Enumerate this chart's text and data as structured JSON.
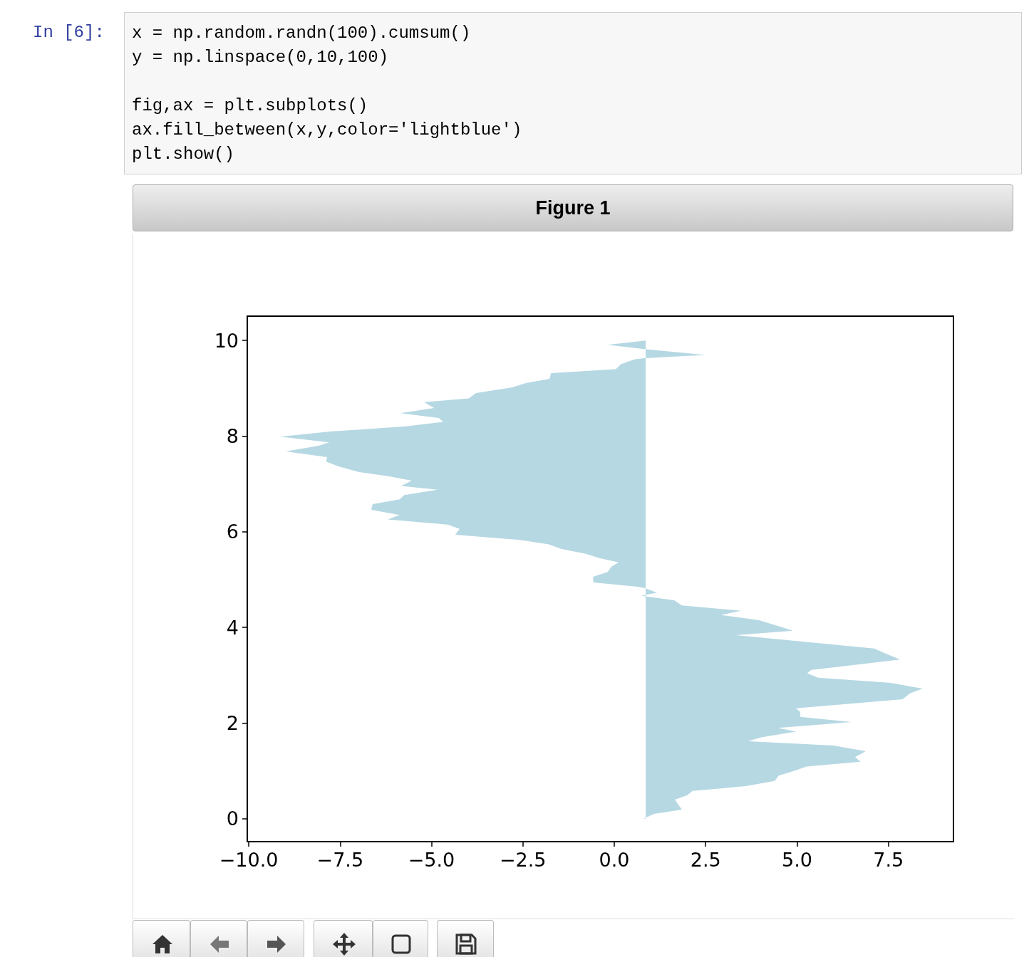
{
  "chart_data": {
    "type": "area",
    "title": "Figure 1",
    "annotations": [
      "In [6]:",
      "x = np.random.randn(100).cumsum()",
      "y = np.linspace(0,10,100)",
      "fig,ax = plt.subplots()",
      "ax.fill_between(x,y,color='lightblue')",
      "plt.show()"
    ],
    "series": [
      {
        "color": "#b6d8e3",
        "x": [
          0.8,
          1.09,
          1.85,
          1.66,
          2.0,
          2.14,
          3.6,
          4.39,
          4.5,
          4.93,
          5.26,
          6.74,
          6.59,
          6.88,
          6.0,
          3.66,
          4.02,
          4.97,
          4.48,
          6.49,
          5.09,
          5.09,
          4.97,
          7.89,
          8.09,
          8.44,
          7.56,
          5.58,
          5.28,
          5.38,
          7.82,
          7.43,
          7.11,
          3.33,
          4.89,
          4.39,
          3.96,
          2.92,
          3.47,
          1.85,
          1.64,
          0.74,
          1.17,
          0.84,
          0.64,
          -0.57,
          -0.58,
          -0.18,
          -0.08,
          0.12,
          -0.41,
          -0.78,
          -1.44,
          -1.81,
          -2.59,
          -4.35,
          -4.23,
          -4.56,
          -6.2,
          -5.87,
          -6.65,
          -6.61,
          -5.87,
          -5.75,
          -4.83,
          -5.83,
          -5.54,
          -6.16,
          -6.98,
          -7.56,
          -7.88,
          -7.86,
          -8.99,
          -8.09,
          -7.8,
          -9.14,
          -7.72,
          -5.75,
          -4.68,
          -4.8,
          -5.85,
          -4.93,
          -5.2,
          -3.98,
          -3.78,
          -2.79,
          -2.42,
          -1.77,
          -1.73,
          0.04,
          0.19,
          0.57,
          0.82,
          2.5,
          0.82,
          -0.18,
          0.86
        ],
        "values": [
          0,
          0.1,
          0.19,
          0.4,
          0.49,
          0.58,
          0.68,
          0.79,
          0.9,
          1.0,
          1.09,
          1.19,
          1.29,
          1.41,
          1.53,
          1.62,
          1.7,
          1.82,
          1.9,
          2.02,
          2.13,
          2.23,
          2.31,
          2.5,
          2.62,
          2.72,
          2.84,
          2.95,
          3.04,
          3.11,
          3.33,
          3.45,
          3.56,
          3.84,
          3.93,
          4.05,
          4.15,
          4.26,
          4.35,
          4.46,
          4.57,
          4.66,
          4.73,
          4.82,
          4.85,
          4.94,
          5.06,
          5.16,
          5.27,
          5.36,
          5.45,
          5.54,
          5.64,
          5.74,
          5.83,
          5.94,
          6.06,
          6.15,
          6.26,
          6.35,
          6.46,
          6.58,
          6.68,
          6.77,
          6.88,
          6.96,
          7.07,
          7.16,
          7.25,
          7.37,
          7.47,
          7.56,
          7.68,
          7.8,
          7.87,
          7.99,
          8.1,
          8.2,
          8.3,
          8.38,
          8.48,
          8.59,
          8.71,
          8.79,
          8.9,
          9.02,
          9.11,
          9.2,
          9.32,
          9.4,
          9.51,
          9.61,
          9.63,
          9.7,
          9.82,
          9.91,
          10.0
        ]
      }
    ],
    "xlim": [
      -10.04,
      9.28
    ],
    "ylim": [
      -0.48,
      10.51
    ],
    "xticks": [
      {
        "value": -10,
        "label": "−10.0"
      },
      {
        "value": -7.5,
        "label": "−7.5"
      },
      {
        "value": -5,
        "label": "−5.0"
      },
      {
        "value": -2.5,
        "label": "−2.5"
      },
      {
        "value": 0,
        "label": "0.0"
      },
      {
        "value": 2.5,
        "label": "2.5"
      },
      {
        "value": 5,
        "label": "5.0"
      },
      {
        "value": 7.5,
        "label": "7.5"
      }
    ],
    "yticks": [
      0,
      2,
      4,
      6,
      8,
      10
    ],
    "grid": false
  }
}
